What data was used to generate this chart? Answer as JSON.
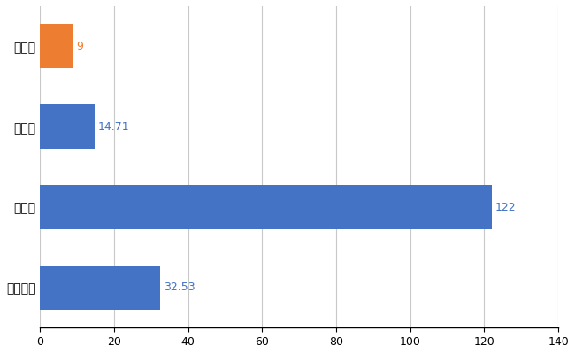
{
  "categories": [
    "全国平均",
    "県最大",
    "県平均",
    "庄内町"
  ],
  "values": [
    32.53,
    122,
    14.71,
    9
  ],
  "bar_colors": [
    "#4472c4",
    "#4472c4",
    "#4472c4",
    "#ed7d31"
  ],
  "value_labels": [
    "32.53",
    "122",
    "14.71",
    "9"
  ],
  "xlim": [
    0,
    140
  ],
  "xticks": [
    0,
    20,
    40,
    60,
    80,
    100,
    120,
    140
  ],
  "grid_color": "#c8c8c8",
  "bar_height": 0.55,
  "background_color": "#ffffff",
  "label_fontsize": 10,
  "tick_fontsize": 9,
  "value_label_fontsize": 9
}
